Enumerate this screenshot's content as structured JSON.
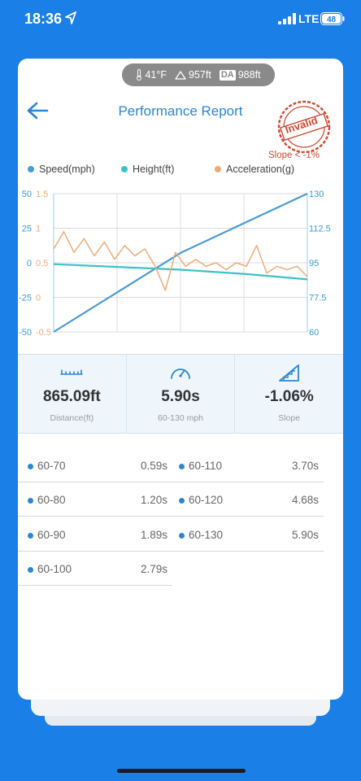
{
  "status_bar": {
    "time": "18:36",
    "network": "LTE",
    "battery": "48",
    "icons": [
      "location-arrow-icon",
      "signal-bars-icon",
      "battery-icon"
    ]
  },
  "weather": {
    "temperature": "41°F",
    "elevation": "957ft",
    "density_altitude_badge": "DA",
    "density_altitude": "988ft",
    "icons": [
      "thermometer-icon",
      "mountain-icon"
    ]
  },
  "header": {
    "title": "Performance Report",
    "stamp": "Invalid",
    "warning": "Slope < -1%"
  },
  "colors": {
    "brand_blue": "#1a7fe6",
    "speed": "#4a9bd6",
    "height": "#3cc2c8",
    "acceleration": "#f0aa78",
    "stamp_red": "#d04a32"
  },
  "legend": {
    "speed": "Speed(mph)",
    "height": "Height(ft)",
    "acceleration": "Acceleration(g)"
  },
  "chart_data": {
    "type": "line",
    "left_axis_height_ticks": [
      "50",
      "25",
      "0",
      "-25",
      "-50"
    ],
    "left_axis_accel_ticks": [
      "1.5",
      "1",
      "0.5",
      "0",
      "-0.5"
    ],
    "right_axis_speed_ticks": [
      "130",
      "112.5",
      "95",
      "77.5",
      "60"
    ],
    "ylim_height": [
      -50,
      50
    ],
    "ylim_accel": [
      -0.5,
      1.5
    ],
    "ylim_speed": [
      60,
      130
    ],
    "x": [
      0,
      0.25,
      0.5,
      0.75,
      1
    ],
    "series": [
      {
        "name": "Speed(mph)",
        "axis": "speed",
        "x": [
          0,
          0.25,
          0.5,
          0.75,
          1
        ],
        "values": [
          60,
          80,
          100,
          115,
          130
        ]
      },
      {
        "name": "Height(ft)",
        "axis": "height",
        "x": [
          0,
          0.25,
          0.5,
          0.75,
          1
        ],
        "values": [
          -1,
          -3,
          -5,
          -8,
          -12
        ]
      },
      {
        "name": "Acceleration(g)",
        "axis": "accel",
        "x": [
          0,
          0.04,
          0.08,
          0.12,
          0.16,
          0.2,
          0.24,
          0.28,
          0.32,
          0.36,
          0.4,
          0.44,
          0.48,
          0.52,
          0.56,
          0.6,
          0.64,
          0.68,
          0.72,
          0.76,
          0.8,
          0.84,
          0.88,
          0.92,
          0.96,
          1
        ],
        "values": [
          0.7,
          0.95,
          0.65,
          0.85,
          0.6,
          0.8,
          0.55,
          0.75,
          0.6,
          0.7,
          0.45,
          0.1,
          0.65,
          0.45,
          0.55,
          0.45,
          0.5,
          0.4,
          0.5,
          0.45,
          0.75,
          0.35,
          0.45,
          0.4,
          0.45,
          0.3
        ]
      }
    ],
    "grid": true
  },
  "stats": [
    {
      "value": "865.09ft",
      "label": "Distance(ft)",
      "icon": "ruler-icon"
    },
    {
      "value": "5.90s",
      "label": "60-130 mph",
      "icon": "speedometer-icon"
    },
    {
      "value": "-1.06%",
      "label": "Slope",
      "icon": "slope-icon"
    }
  ],
  "splits": [
    {
      "label": "60-70",
      "value": "0.59s"
    },
    {
      "label": "60-80",
      "value": "1.20s"
    },
    {
      "label": "60-90",
      "value": "1.89s"
    },
    {
      "label": "60-100",
      "value": "2.79s"
    },
    {
      "label": "60-110",
      "value": "3.70s"
    },
    {
      "label": "60-120",
      "value": "4.68s"
    },
    {
      "label": "60-130",
      "value": "5.90s"
    }
  ]
}
